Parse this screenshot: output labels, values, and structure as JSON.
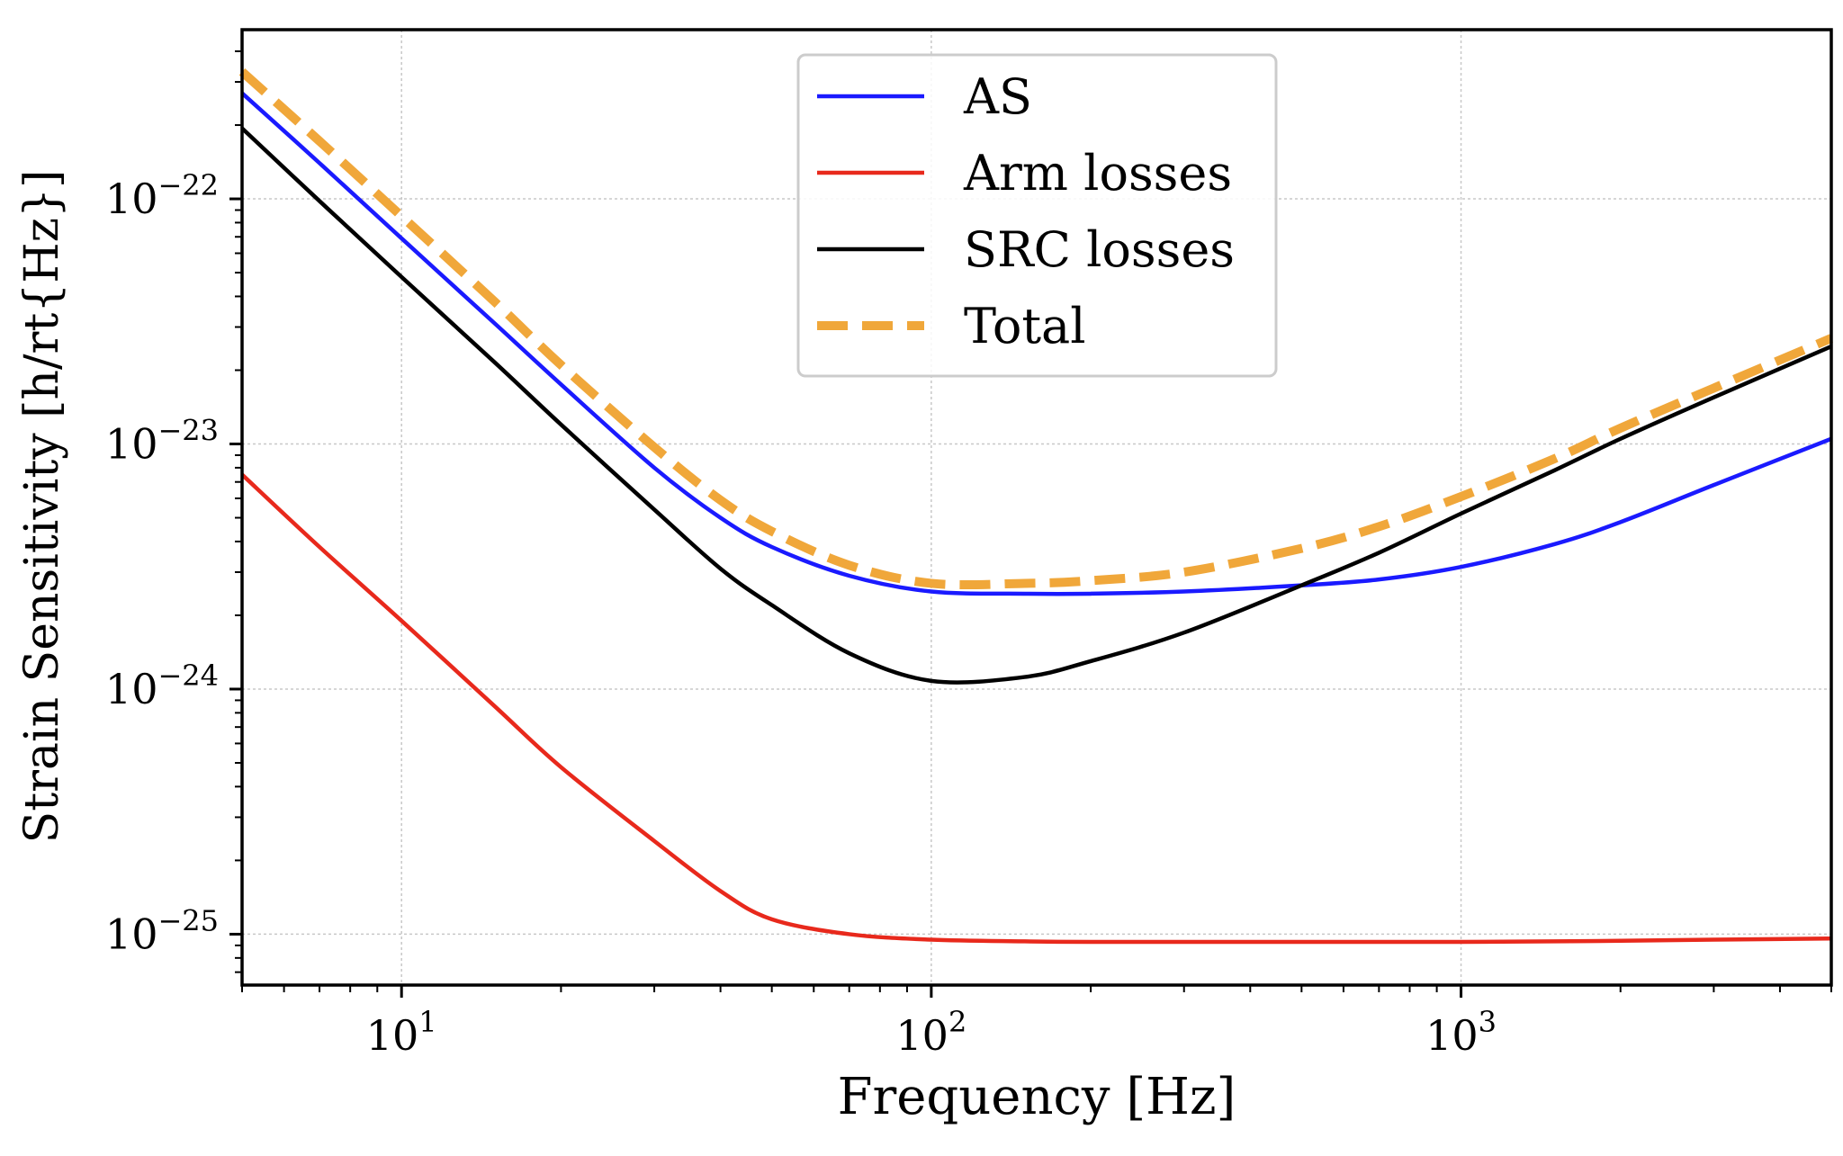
{
  "chart_data": {
    "type": "line",
    "title": "",
    "xlabel": "Frequency [Hz]",
    "ylabel": "Strain Sensitivity [h/rt{Hz}]",
    "xscale": "log",
    "yscale": "log",
    "xlim": [
      5,
      5000
    ],
    "ylim": [
      6.2e-26,
      4.9e-22
    ],
    "grid": true,
    "legend_position": "top-center",
    "xticks": [
      {
        "value": 10,
        "base": "10",
        "exp": "1"
      },
      {
        "value": 100,
        "base": "10",
        "exp": "2"
      },
      {
        "value": 1000,
        "base": "10",
        "exp": "3"
      }
    ],
    "yticks": [
      {
        "value": 1e-22,
        "base": "10",
        "exp": "−22"
      },
      {
        "value": 1e-23,
        "base": "10",
        "exp": "−23"
      },
      {
        "value": 1e-24,
        "base": "10",
        "exp": "−24"
      },
      {
        "value": 1e-25,
        "base": "10",
        "exp": "−25"
      }
    ],
    "x": [
      5,
      7,
      10,
      15,
      20,
      30,
      40,
      50,
      70,
      100,
      150,
      200,
      300,
      500,
      700,
      1000,
      1500,
      2000,
      3000,
      5000
    ],
    "series": [
      {
        "name": "AS",
        "color": "#1a1aff",
        "dash": false,
        "values": [
          2.7e-22,
          1.4e-22,
          6.9e-23,
          3.1e-23,
          1.75e-23,
          8e-24,
          5e-24,
          3.8e-24,
          2.9e-24,
          2.5e-24,
          2.45e-24,
          2.45e-24,
          2.5e-24,
          2.65e-24,
          2.8e-24,
          3.15e-24,
          3.9e-24,
          4.8e-24,
          6.8e-24,
          1.05e-23
        ]
      },
      {
        "name": "Arm losses",
        "color": "#e8291c",
        "dash": false,
        "values": [
          7.5e-24,
          3.8e-24,
          1.9e-24,
          8.5e-25,
          4.8e-25,
          2.4e-25,
          1.5e-25,
          1.15e-25,
          1e-25,
          9.5e-26,
          9.35e-26,
          9.3e-26,
          9.3e-26,
          9.3e-26,
          9.3e-26,
          9.3e-26,
          9.35e-26,
          9.4e-26,
          9.5e-26,
          9.6e-26
        ]
      },
      {
        "name": "SRC losses",
        "color": "#000000",
        "dash": false,
        "values": [
          1.94e-22,
          9.8e-23,
          4.8e-23,
          2.15e-23,
          1.2e-23,
          5.4e-24,
          3.1e-24,
          2.2e-24,
          1.4e-24,
          1.08e-24,
          1.12e-24,
          1.3e-24,
          1.7e-24,
          2.65e-24,
          3.6e-24,
          5.2e-24,
          7.8e-24,
          1.05e-23,
          1.55e-23,
          2.5e-23
        ]
      },
      {
        "name": "Total",
        "color": "#f0a73a",
        "dash": true,
        "values": [
          3.3e-22,
          1.72e-22,
          8.5e-23,
          3.8e-23,
          2.1e-23,
          9.7e-24,
          5.9e-24,
          4.4e-24,
          3.2e-24,
          2.7e-24,
          2.7e-24,
          2.77e-24,
          3e-24,
          3.75e-24,
          4.6e-24,
          6.1e-24,
          8.7e-24,
          1.16e-23,
          1.69e-23,
          2.7e-23
        ]
      }
    ]
  }
}
